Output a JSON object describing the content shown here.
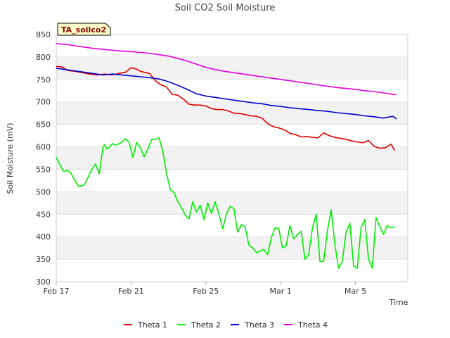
{
  "chart_data": {
    "type": "line",
    "title": "Soil CO2 Soil Moisture",
    "xlabel": "Time",
    "ylabel": "Soil Moisture (mV)",
    "site_label": "TA_soilco2",
    "ylim": [
      300,
      850
    ],
    "yticks": [
      300,
      350,
      400,
      450,
      500,
      550,
      600,
      650,
      700,
      750,
      800,
      850
    ],
    "xlim": [
      0,
      18.8
    ],
    "xticks": [
      {
        "value": 0,
        "label": "Feb 17"
      },
      {
        "value": 4,
        "label": "Feb 21"
      },
      {
        "value": 8,
        "label": "Feb 25"
      },
      {
        "value": 12,
        "label": "Mar 1"
      },
      {
        "value": 16,
        "label": "Mar 5"
      }
    ],
    "series": [
      {
        "name": "Theta 1",
        "color": "#dd0000",
        "x": [
          0.0,
          0.3,
          0.6,
          1.0,
          1.4,
          1.8,
          2.2,
          2.6,
          3.0,
          3.4,
          3.7,
          4.0,
          4.3,
          4.5,
          4.8,
          5.0,
          5.3,
          5.6,
          5.9,
          6.2,
          6.5,
          6.8,
          7.1,
          7.4,
          7.7,
          8.0,
          8.3,
          8.6,
          8.9,
          9.2,
          9.5,
          9.8,
          10.1,
          10.4,
          10.7,
          11.0,
          11.3,
          11.6,
          11.9,
          12.2,
          12.5,
          12.8,
          13.1,
          13.4,
          13.7,
          14.0,
          14.3,
          14.6,
          14.9,
          15.2,
          15.5,
          15.8,
          16.1,
          16.4,
          16.7,
          17.0,
          17.3,
          17.6,
          17.9,
          18.1
        ],
        "values": [
          779,
          778,
          770,
          768,
          765,
          762,
          760,
          762,
          760,
          764,
          766,
          776,
          773,
          768,
          765,
          763,
          747,
          738,
          733,
          717,
          715,
          706,
          695,
          693,
          693,
          691,
          685,
          683,
          683,
          680,
          675,
          674,
          672,
          669,
          668,
          664,
          652,
          645,
          642,
          638,
          630,
          627,
          622,
          623,
          621,
          620,
          631,
          625,
          621,
          619,
          617,
          613,
          611,
          609,
          614,
          601,
          597,
          598,
          606,
          592
        ]
      },
      {
        "name": "Theta 2",
        "color": "#00ee00",
        "x": [
          0.0,
          0.2,
          0.4,
          0.6,
          0.8,
          1.0,
          1.2,
          1.5,
          1.7,
          1.9,
          2.1,
          2.3,
          2.5,
          2.6,
          2.7,
          2.8,
          3.0,
          3.2,
          3.5,
          3.7,
          3.9,
          4.1,
          4.3,
          4.5,
          4.7,
          4.9,
          5.1,
          5.3,
          5.5,
          5.7,
          5.9,
          6.1,
          6.3,
          6.5,
          6.7,
          6.9,
          7.1,
          7.3,
          7.5,
          7.7,
          7.9,
          8.1,
          8.3,
          8.5,
          8.7,
          8.9,
          9.1,
          9.3,
          9.5,
          9.7,
          9.9,
          10.1,
          10.3,
          10.5,
          10.7,
          10.9,
          11.1,
          11.3,
          11.5,
          11.7,
          11.9,
          12.1,
          12.3,
          12.5,
          12.7,
          12.9,
          13.1,
          13.3,
          13.5,
          13.7,
          13.9,
          14.1,
          14.3,
          14.5,
          14.7,
          14.9,
          15.1,
          15.3,
          15.5,
          15.7,
          15.9,
          16.1,
          16.3,
          16.5,
          16.7,
          16.9,
          17.1,
          17.3,
          17.5,
          17.7,
          17.9,
          18.1
        ],
        "values": [
          577,
          560,
          545,
          548,
          540,
          525,
          512,
          515,
          532,
          550,
          562,
          540,
          600,
          605,
          595,
          598,
          607,
          604,
          610,
          618,
          610,
          577,
          610,
          598,
          578,
          595,
          616,
          617,
          620,
          590,
          540,
          505,
          498,
          478,
          465,
          448,
          440,
          478,
          455,
          470,
          438,
          475,
          452,
          478,
          450,
          418,
          450,
          468,
          462,
          410,
          427,
          422,
          382,
          375,
          365,
          367,
          372,
          360,
          398,
          420,
          418,
          375,
          380,
          425,
          395,
          405,
          412,
          350,
          360,
          420,
          450,
          345,
          345,
          412,
          460,
          382,
          330,
          345,
          410,
          430,
          335,
          330,
          420,
          438,
          350,
          330,
          443,
          422,
          405,
          425,
          420,
          422
        ]
      },
      {
        "name": "Theta 3",
        "color": "#0000cc",
        "x": [
          0.0,
          0.5,
          1.0,
          1.5,
          2.0,
          2.5,
          3.0,
          3.5,
          4.0,
          4.5,
          5.0,
          5.5,
          6.0,
          6.5,
          7.0,
          7.5,
          8.0,
          8.5,
          9.0,
          9.5,
          10.0,
          10.5,
          11.0,
          11.5,
          12.0,
          12.5,
          13.0,
          13.5,
          14.0,
          14.5,
          15.0,
          15.5,
          16.0,
          16.5,
          17.0,
          17.5,
          18.0,
          18.2
        ],
        "values": [
          775,
          772,
          769,
          766,
          763,
          760,
          762,
          760,
          758,
          756,
          754,
          751,
          745,
          737,
          728,
          718,
          713,
          710,
          707,
          704,
          701,
          698,
          696,
          692,
          690,
          687,
          685,
          683,
          681,
          679,
          676,
          674,
          672,
          669,
          667,
          664,
          668,
          662
        ]
      },
      {
        "name": "Theta 4",
        "color": "#dd00dd",
        "x": [
          0.0,
          0.5,
          1.0,
          1.5,
          2.0,
          2.5,
          3.0,
          3.5,
          4.0,
          4.5,
          5.0,
          5.5,
          6.0,
          6.5,
          7.0,
          7.5,
          8.0,
          8.5,
          9.0,
          9.5,
          10.0,
          10.5,
          11.0,
          11.5,
          12.0,
          12.5,
          13.0,
          13.5,
          14.0,
          14.5,
          15.0,
          15.5,
          16.0,
          16.5,
          17.0,
          17.5,
          18.0,
          18.2
        ],
        "values": [
          830,
          828,
          825,
          822,
          819,
          817,
          815,
          813,
          812,
          810,
          808,
          805,
          802,
          797,
          791,
          784,
          777,
          772,
          768,
          765,
          762,
          759,
          756,
          753,
          750,
          747,
          744,
          741,
          738,
          735,
          732,
          730,
          728,
          725,
          723,
          720,
          717,
          716
        ]
      }
    ]
  }
}
